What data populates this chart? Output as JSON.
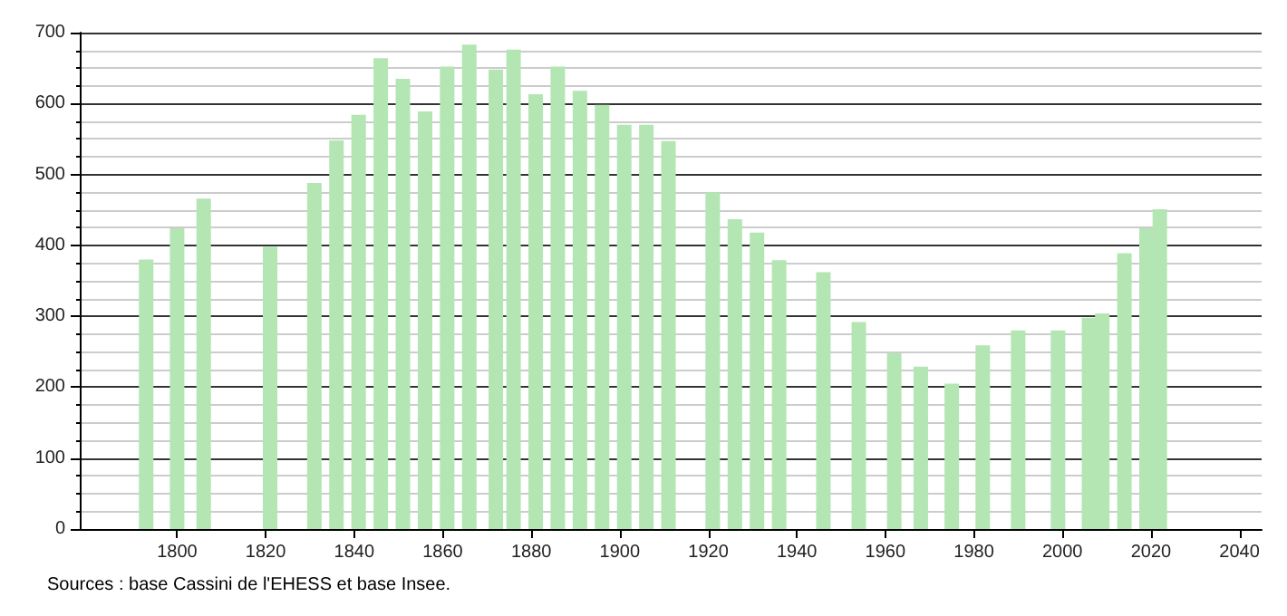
{
  "chart_data": {
    "type": "bar",
    "x": [
      1793,
      1800,
      1806,
      1821,
      1831,
      1836,
      1841,
      1846,
      1851,
      1856,
      1861,
      1866,
      1872,
      1876,
      1881,
      1886,
      1891,
      1896,
      1901,
      1906,
      1911,
      1921,
      1926,
      1931,
      1936,
      1946,
      1954,
      1962,
      1968,
      1975,
      1982,
      1990,
      1999,
      2006,
      2009,
      2014,
      2019,
      2022
    ],
    "values": [
      380,
      424,
      466,
      398,
      488,
      548,
      584,
      664,
      635,
      589,
      652,
      683,
      648,
      676,
      613,
      652,
      618,
      598,
      570,
      570,
      547,
      475,
      437,
      418,
      379,
      362,
      292,
      248,
      229,
      205,
      259,
      280,
      280,
      298,
      304,
      389,
      424,
      451
    ],
    "color": "#b3e6b3",
    "xlim": [
      1778,
      2045
    ],
    "xticks": [
      1800,
      1820,
      1840,
      1860,
      1880,
      1900,
      1920,
      1940,
      1960,
      1980,
      2000,
      2020,
      2040
    ],
    "ylim": [
      0,
      700
    ],
    "yticks": [
      0,
      100,
      200,
      300,
      400,
      500,
      600,
      700
    ],
    "grid": "y",
    "annotations": [
      "Sources : base Cassini de l'EHESS et base Insee."
    ]
  }
}
